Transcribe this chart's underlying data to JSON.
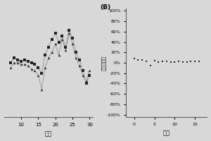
{
  "left_panel": {
    "xlabel": "编号",
    "squares_x": [
      7,
      8,
      9,
      10,
      11,
      12,
      13,
      14,
      15,
      16,
      17,
      18,
      19,
      20,
      21,
      22,
      23,
      24,
      25,
      26,
      27,
      28,
      29,
      30
    ],
    "squares_y": [
      0.55,
      0.58,
      0.57,
      0.56,
      0.57,
      0.56,
      0.55,
      0.54,
      0.52,
      0.48,
      0.6,
      0.65,
      0.7,
      0.74,
      0.68,
      0.72,
      0.65,
      0.76,
      0.71,
      0.62,
      0.57,
      0.5,
      0.42,
      0.47
    ],
    "triangles_x": [
      7,
      8,
      9,
      10,
      11,
      12,
      13,
      14,
      15,
      16,
      17,
      18,
      19,
      20,
      21,
      22,
      23,
      24,
      25,
      26,
      27,
      28,
      29,
      30
    ],
    "triangles_y": [
      0.52,
      0.55,
      0.55,
      0.54,
      0.54,
      0.53,
      0.51,
      0.5,
      0.47,
      0.38,
      0.52,
      0.58,
      0.62,
      0.67,
      0.6,
      0.7,
      0.63,
      0.74,
      0.67,
      0.58,
      0.53,
      0.47,
      0.43,
      0.5
    ],
    "xlim": [
      5,
      31
    ],
    "ylim": [
      0.2,
      0.9
    ],
    "xticks": [
      10,
      15,
      20,
      25,
      30
    ],
    "line_color": "#999999"
  },
  "right_panel": {
    "label": "(B)",
    "xlabel": "编号",
    "ylabel": "误差百分比",
    "yticks": [
      -1.0,
      -0.8,
      -0.6,
      -0.4,
      -0.2,
      0.0,
      0.2,
      0.4,
      0.6,
      0.8,
      1.0
    ],
    "ytick_labels": [
      "-100%",
      "-80%",
      "-60%",
      "-40%",
      "-20%",
      "0%",
      "20%",
      "40%",
      "60%",
      "80%",
      "100%"
    ],
    "xlim": [
      -2,
      18
    ],
    "xticks": [
      0,
      5,
      10,
      15
    ],
    "points_x": [
      0,
      1,
      2,
      3,
      4,
      5,
      6,
      7,
      8,
      9,
      10,
      11,
      12,
      13,
      14,
      15,
      16
    ],
    "points_y": [
      0.08,
      0.05,
      0.06,
      0.03,
      -0.06,
      0.04,
      0.02,
      0.03,
      0.03,
      0.02,
      0.02,
      0.03,
      0.02,
      0.02,
      0.03,
      0.03,
      0.03
    ],
    "ylim": [
      -1.05,
      1.05
    ]
  },
  "bg_color": "#d8d8d8",
  "marker_color": "#222222",
  "line_color": "#888888"
}
